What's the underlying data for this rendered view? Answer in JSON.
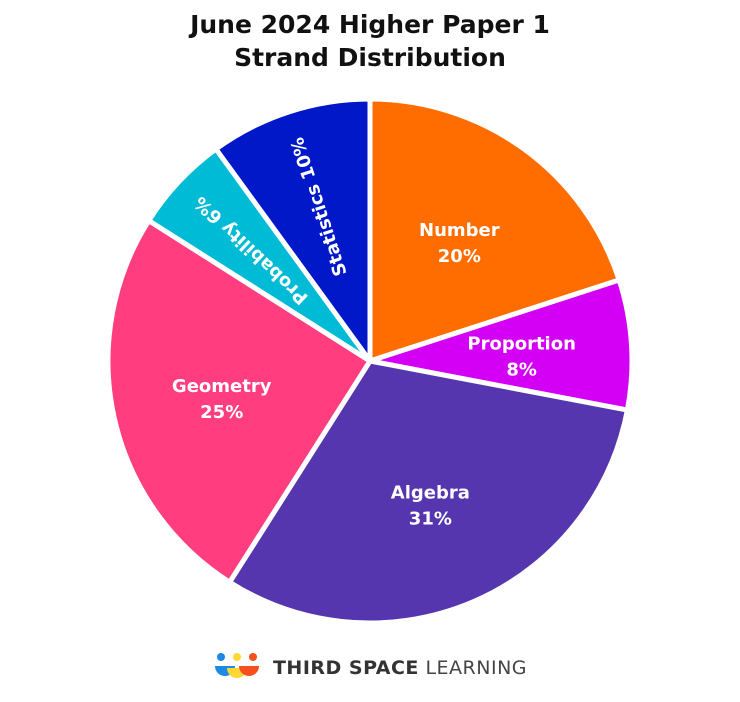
{
  "title_line1": "June 2024 Higher Paper 1",
  "title_line2": "Strand Distribution",
  "chart_data": {
    "type": "pie",
    "title": "June 2024 Higher Paper 1 Strand Distribution",
    "slices": [
      {
        "label": "Number",
        "value": 20,
        "pct": "20%",
        "color": "#FF6D00",
        "rotate": false
      },
      {
        "label": "Proportion",
        "value": 8,
        "pct": "8%",
        "color": "#D400F5",
        "rotate": false
      },
      {
        "label": "Algebra",
        "value": 31,
        "pct": "31%",
        "color": "#5536AE",
        "rotate": false
      },
      {
        "label": "Geometry",
        "value": 25,
        "pct": "25%",
        "color": "#FF3D7F",
        "rotate": false
      },
      {
        "label": "Probability",
        "value": 6,
        "pct": "6%",
        "color": "#00BBD5",
        "rotate": true
      },
      {
        "label": "Statistics",
        "value": 10,
        "pct": "10%",
        "color": "#0018C8",
        "rotate": true
      }
    ]
  },
  "logo": {
    "text_bold": "THIRD SPACE",
    "text_light": "LEARNING",
    "colors": [
      "#1E88E5",
      "#FDD835",
      "#F4511E"
    ]
  }
}
